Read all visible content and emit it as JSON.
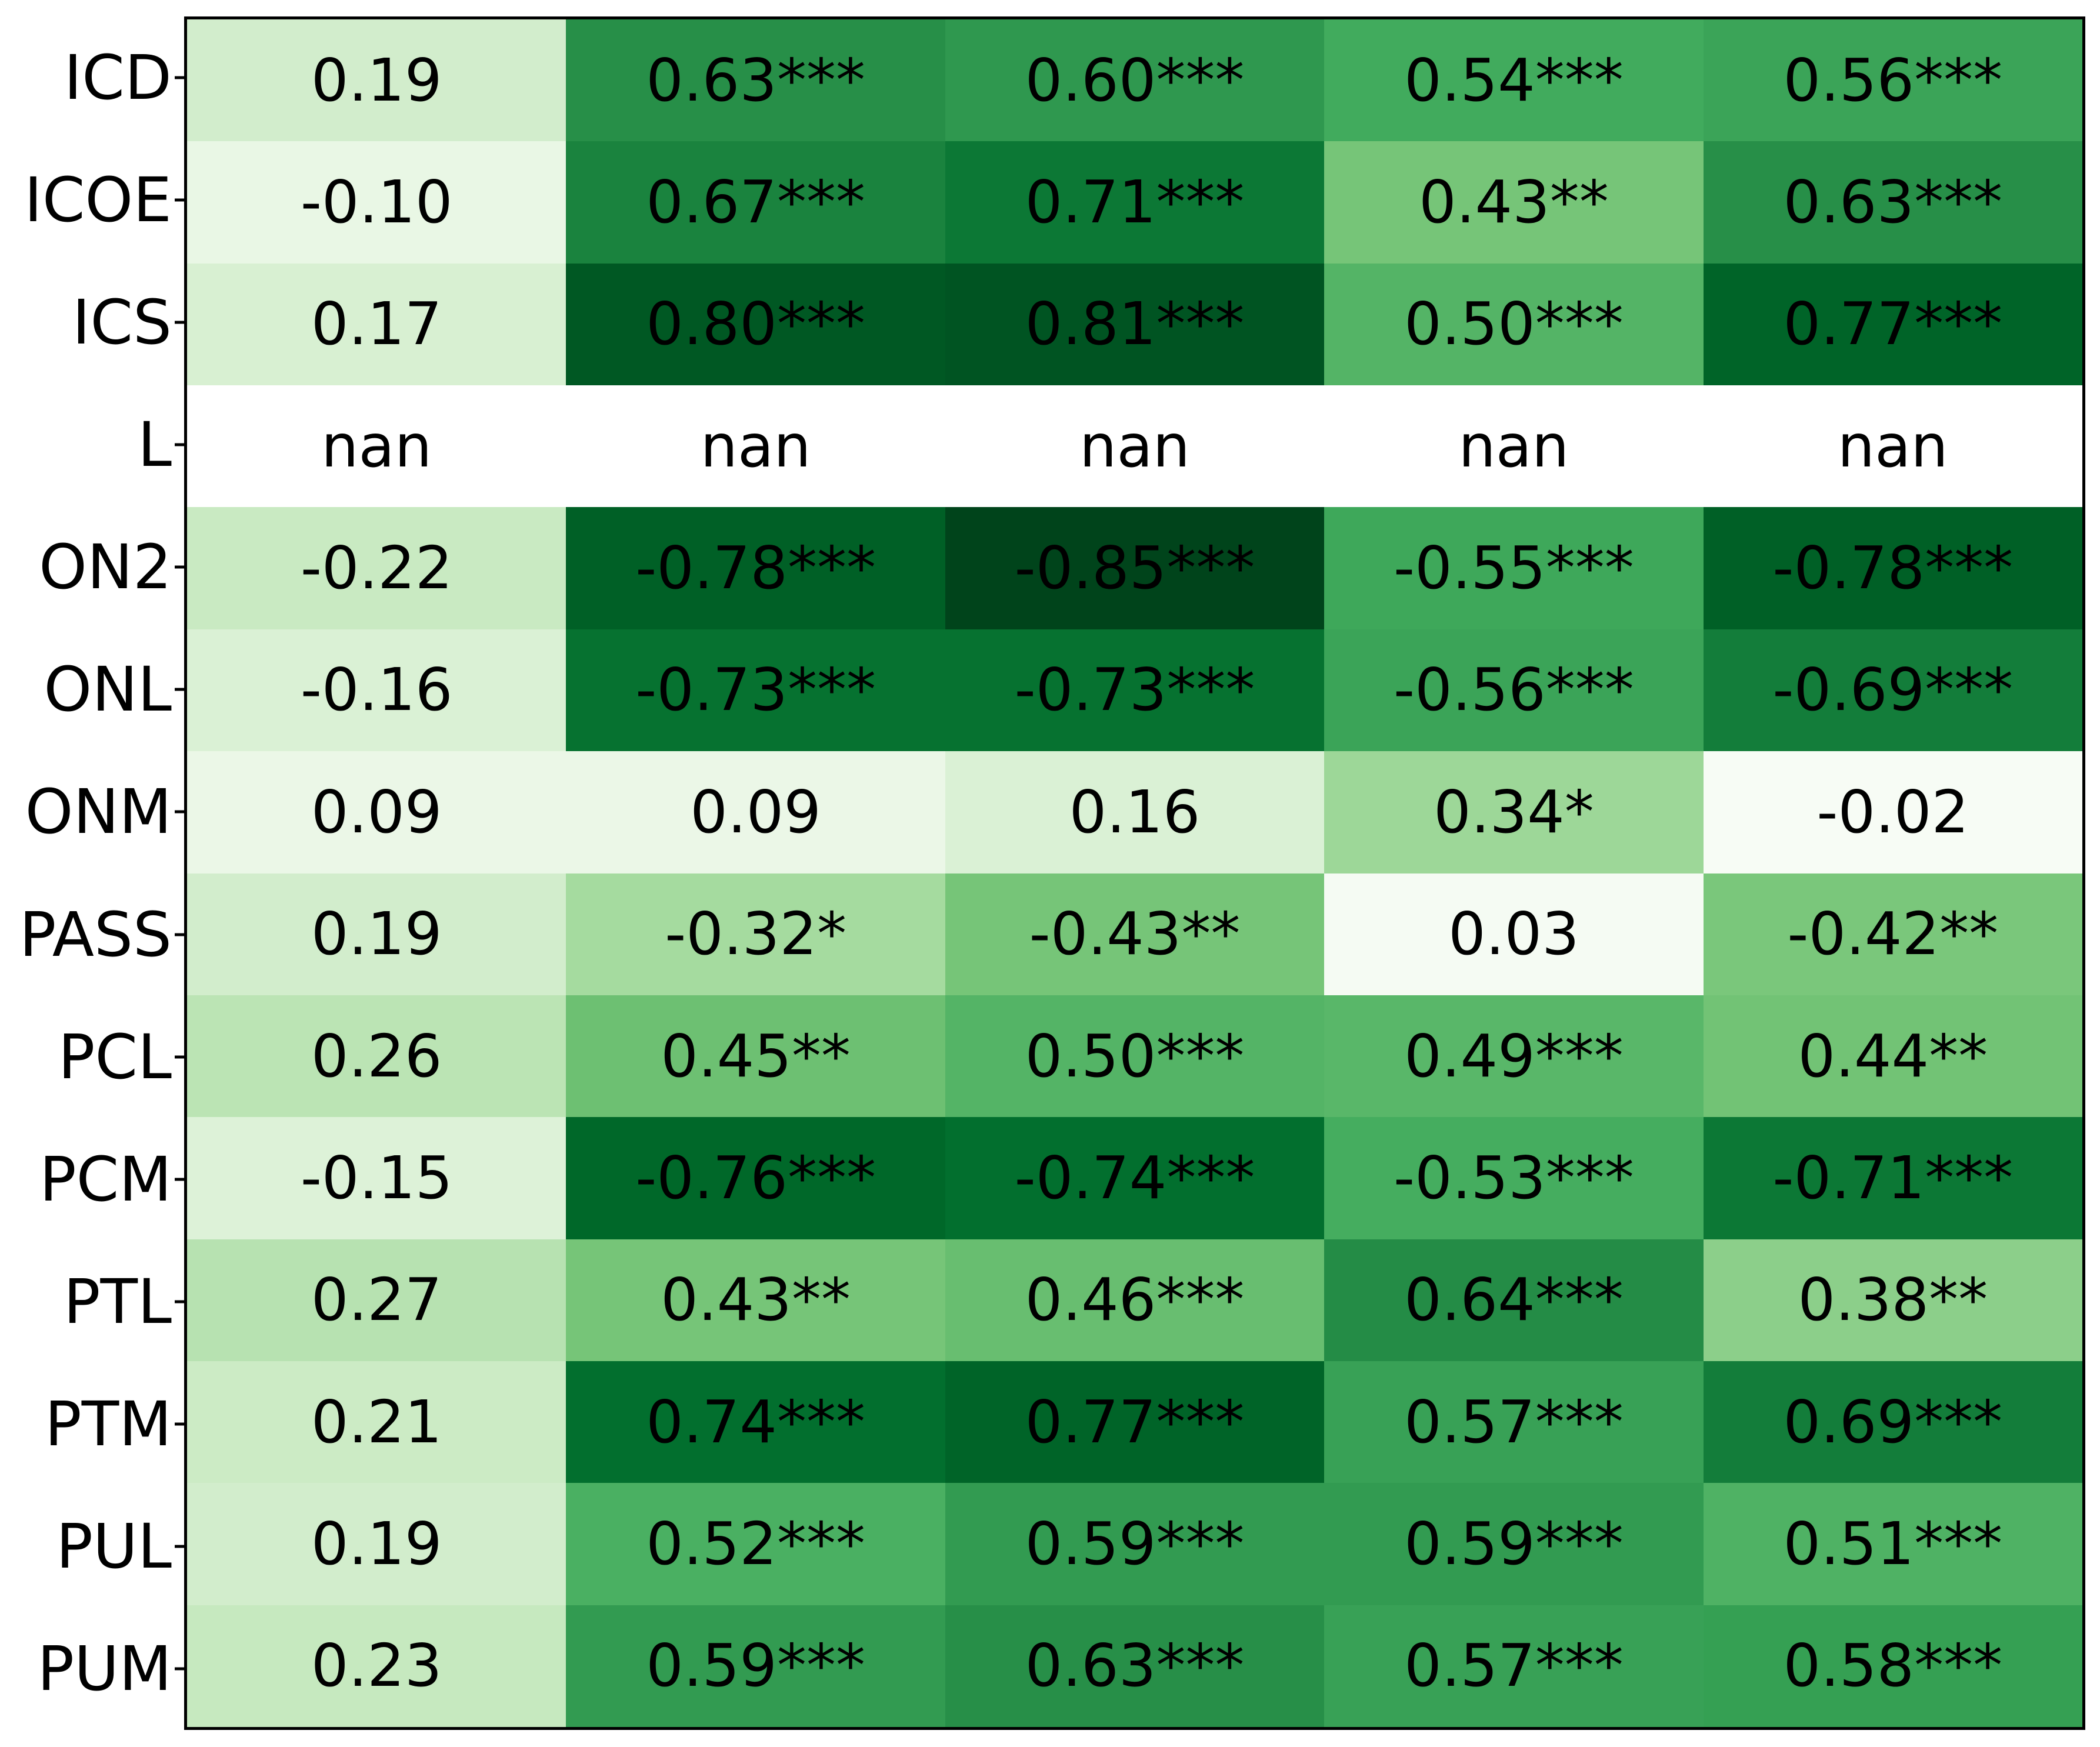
{
  "figure": {
    "background": "#ffffff",
    "spine_color": "#000000",
    "text_color": "#000000",
    "nan_color": "#ffffff"
  },
  "chart_data": {
    "type": "heatmap",
    "title": "",
    "xlabel": "",
    "ylabel": "",
    "colormap": "greens (shade scales with absolute correlation)",
    "n_rows": 14,
    "n_cols": 5,
    "x_tick_labels": [],
    "y_tick_labels": [
      "ICD",
      "ICOE",
      "ICS",
      "L",
      "ON2",
      "ONL",
      "ONM",
      "PASS",
      "PCL",
      "PCM",
      "PTL",
      "PTM",
      "PUL",
      "PUM"
    ],
    "cells": [
      [
        "0.19",
        "0.63***",
        "0.60***",
        "0.54***",
        "0.56***"
      ],
      [
        "-0.10",
        "0.67***",
        "0.71***",
        "0.43**",
        "0.63***"
      ],
      [
        "0.17",
        "0.80***",
        "0.81***",
        "0.50***",
        "0.77***"
      ],
      [
        "nan",
        "nan",
        "nan",
        "nan",
        "nan"
      ],
      [
        "-0.22",
        "-0.78***",
        "-0.85***",
        "-0.55***",
        "-0.78***"
      ],
      [
        "-0.16",
        "-0.73***",
        "-0.73***",
        "-0.56***",
        "-0.69***"
      ],
      [
        "0.09",
        "0.09",
        "0.16",
        "0.34*",
        "-0.02"
      ],
      [
        "0.19",
        "-0.32*",
        "-0.43**",
        "0.03",
        "-0.42**"
      ],
      [
        "0.26",
        "0.45**",
        "0.50***",
        "0.49***",
        "0.44**"
      ],
      [
        "-0.15",
        "-0.76***",
        "-0.74***",
        "-0.53***",
        "-0.71***"
      ],
      [
        "0.27",
        "0.43**",
        "0.46***",
        "0.64***",
        "0.38**"
      ],
      [
        "0.21",
        "0.74***",
        "0.77***",
        "0.57***",
        "0.69***"
      ],
      [
        "0.19",
        "0.52***",
        "0.59***",
        "0.59***",
        "0.51***"
      ],
      [
        "0.23",
        "0.59***",
        "0.63***",
        "0.57***",
        "0.58***"
      ]
    ],
    "values": [
      [
        0.19,
        0.63,
        0.6,
        0.54,
        0.56
      ],
      [
        -0.1,
        0.67,
        0.71,
        0.43,
        0.63
      ],
      [
        0.17,
        0.8,
        0.81,
        0.5,
        0.77
      ],
      [
        null,
        null,
        null,
        null,
        null
      ],
      [
        -0.22,
        -0.78,
        -0.85,
        -0.55,
        -0.78
      ],
      [
        -0.16,
        -0.73,
        -0.73,
        -0.56,
        -0.69
      ],
      [
        0.09,
        0.09,
        0.16,
        0.34,
        -0.02
      ],
      [
        0.19,
        -0.32,
        -0.43,
        0.03,
        -0.42
      ],
      [
        0.26,
        0.45,
        0.5,
        0.49,
        0.44
      ],
      [
        -0.15,
        -0.76,
        -0.74,
        -0.53,
        -0.71
      ],
      [
        0.27,
        0.43,
        0.46,
        0.64,
        0.38
      ],
      [
        0.21,
        0.74,
        0.77,
        0.57,
        0.69
      ],
      [
        0.19,
        0.52,
        0.59,
        0.59,
        0.51
      ],
      [
        0.23,
        0.59,
        0.63,
        0.57,
        0.58
      ]
    ],
    "cell_colors": [
      [
        "#d2edcc",
        "#278f48",
        "#2f984f",
        "#41ab5d",
        "#3ba458"
      ],
      [
        "#e9f7e5",
        "#1a833e",
        "#0c7835",
        "#76c578",
        "#278f48"
      ],
      [
        "#d8f0d2",
        "#005823",
        "#005422",
        "#54b466",
        "#006428"
      ],
      [
        "#ffffff",
        "#ffffff",
        "#ffffff",
        "#ffffff",
        "#ffffff"
      ],
      [
        "#c9eac2",
        "#006026",
        "#00441b",
        "#3ea85a",
        "#006026"
      ],
      [
        "#daf1d5",
        "#067230",
        "#067230",
        "#3ba458",
        "#137d3a"
      ],
      [
        "#ebf7e7",
        "#ebf7e7",
        "#daf1d5",
        "#9dd798",
        "#f7fcf5"
      ],
      [
        "#d2edcc",
        "#a5db9f",
        "#76c578",
        "#f5fbf3",
        "#7ac77b"
      ],
      [
        "#bbe4b4",
        "#6dc072",
        "#54b466",
        "#59b769",
        "#72c375"
      ],
      [
        "#ddf2d8",
        "#006829",
        "#026f2e",
        "#45ad5f",
        "#0c7835"
      ],
      [
        "#b7e2b1",
        "#76c578",
        "#68be70",
        "#248c46",
        "#8ccf8a"
      ],
      [
        "#ccebc5",
        "#026f2e",
        "#006428",
        "#38a156",
        "#137d3a"
      ],
      [
        "#d2edcc",
        "#4ab062",
        "#329b51",
        "#329b51",
        "#4fb264"
      ],
      [
        "#c6e9bf",
        "#329b51",
        "#278f48",
        "#38a156",
        "#35a053"
      ]
    ]
  }
}
